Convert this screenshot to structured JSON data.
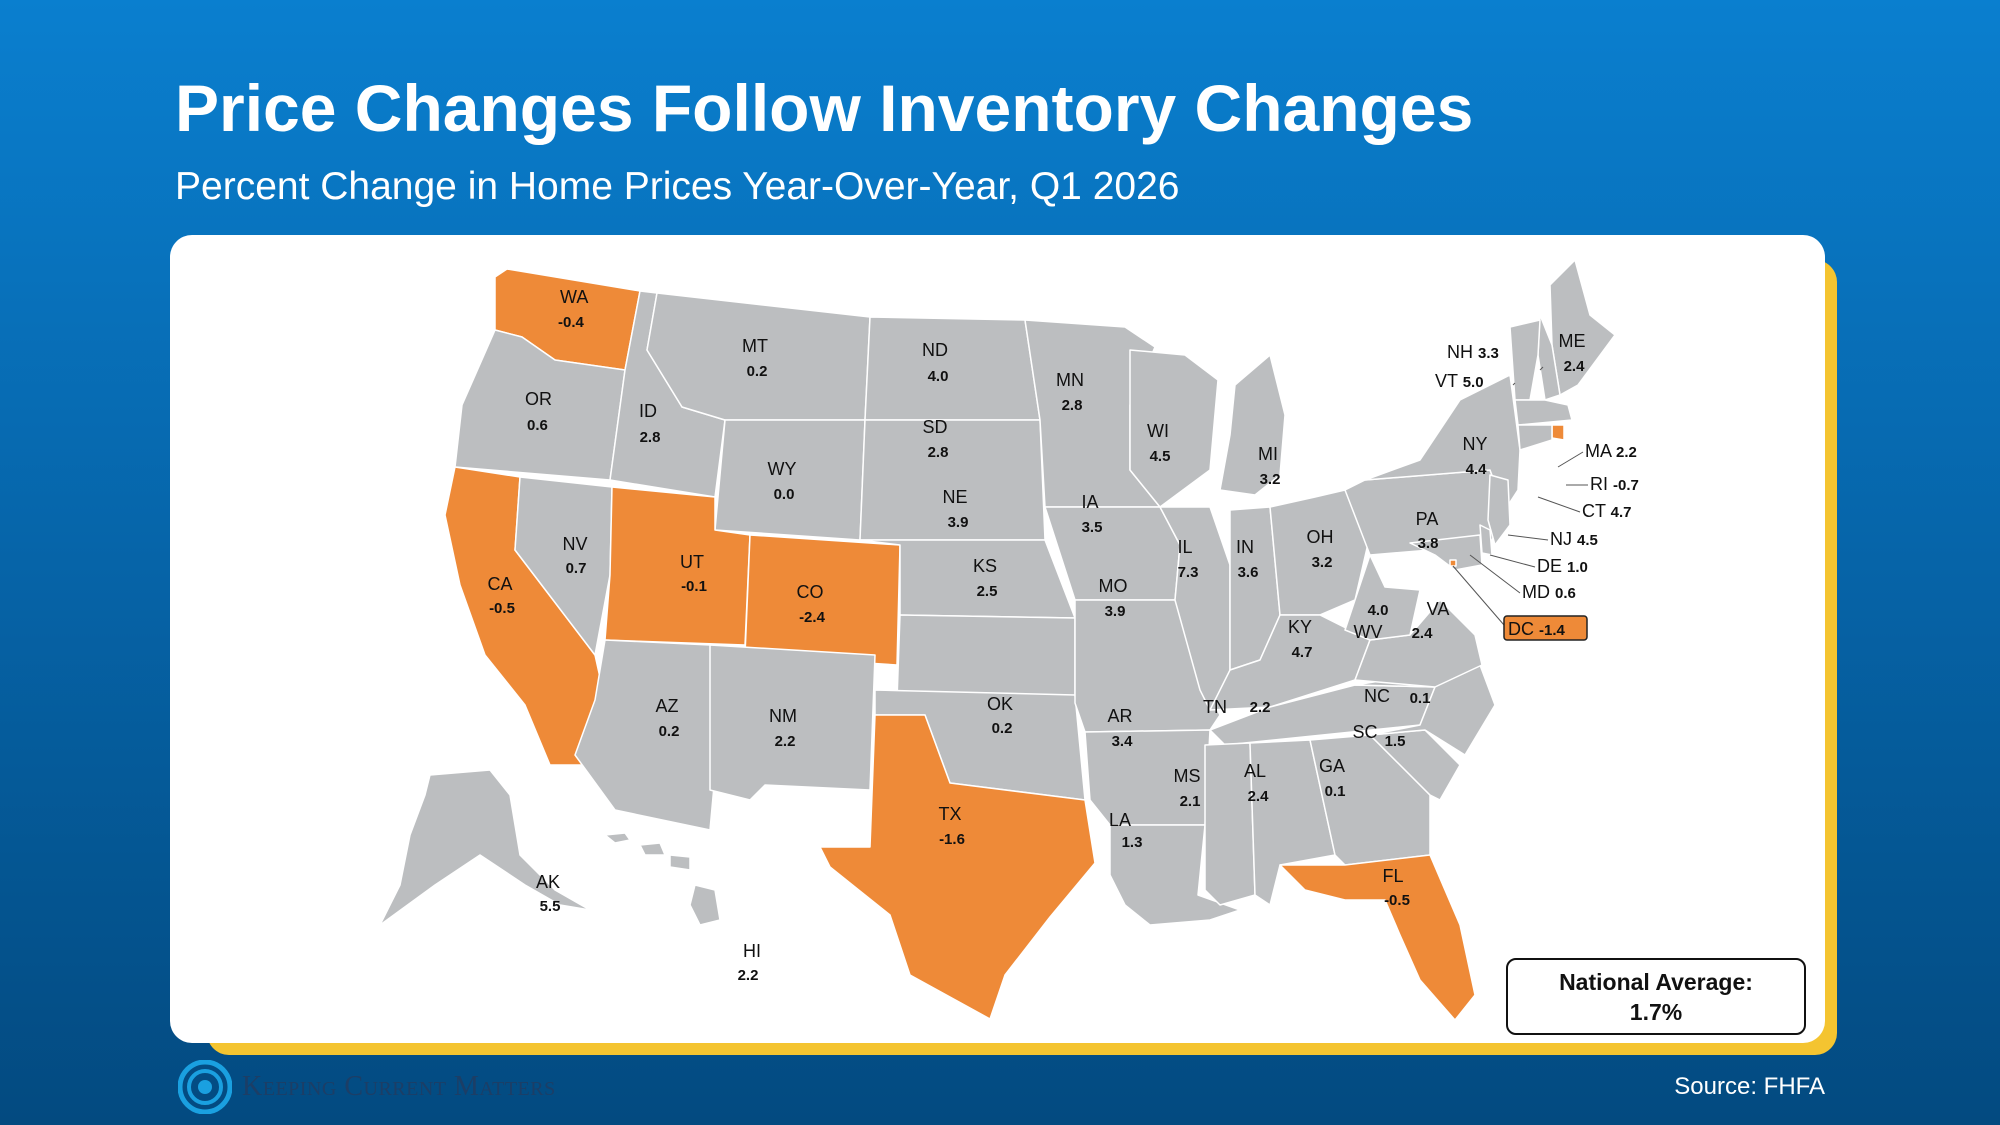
{
  "title": "Price Changes Follow Inventory Changes",
  "subtitle": "Percent Change in Home Prices Year-Over-Year, Q1 2026",
  "colors": {
    "decline": "#ee8a38",
    "gain": "#bcbec0",
    "accent_frame": "#f4c430",
    "background": "#0a6fbb"
  },
  "states": [
    {
      "abbr": "WA",
      "value": "-0.4"
    },
    {
      "abbr": "OR",
      "value": "0.6"
    },
    {
      "abbr": "CA",
      "value": "-0.5"
    },
    {
      "abbr": "NV",
      "value": "0.7"
    },
    {
      "abbr": "ID",
      "value": "2.8"
    },
    {
      "abbr": "MT",
      "value": "0.2"
    },
    {
      "abbr": "WY",
      "value": "0.0"
    },
    {
      "abbr": "UT",
      "value": "-0.1"
    },
    {
      "abbr": "CO",
      "value": "-2.4"
    },
    {
      "abbr": "AZ",
      "value": "0.2"
    },
    {
      "abbr": "NM",
      "value": "2.2"
    },
    {
      "abbr": "ND",
      "value": "4.0"
    },
    {
      "abbr": "SD",
      "value": "2.8"
    },
    {
      "abbr": "NE",
      "value": "3.9"
    },
    {
      "abbr": "KS",
      "value": "2.5"
    },
    {
      "abbr": "OK",
      "value": "0.2"
    },
    {
      "abbr": "TX",
      "value": "-1.6"
    },
    {
      "abbr": "MN",
      "value": "2.8"
    },
    {
      "abbr": "IA",
      "value": "3.5"
    },
    {
      "abbr": "MO",
      "value": "3.9"
    },
    {
      "abbr": "AR",
      "value": "3.4"
    },
    {
      "abbr": "LA",
      "value": "1.3"
    },
    {
      "abbr": "WI",
      "value": "4.5"
    },
    {
      "abbr": "IL",
      "value": "7.3"
    },
    {
      "abbr": "MI",
      "value": "3.2"
    },
    {
      "abbr": "IN",
      "value": "3.6"
    },
    {
      "abbr": "OH",
      "value": "3.2"
    },
    {
      "abbr": "KY",
      "value": "4.7"
    },
    {
      "abbr": "TN",
      "value": "2.2"
    },
    {
      "abbr": "MS",
      "value": "2.1"
    },
    {
      "abbr": "AL",
      "value": "2.4"
    },
    {
      "abbr": "GA",
      "value": "0.1"
    },
    {
      "abbr": "FL",
      "value": "-0.5"
    },
    {
      "abbr": "SC",
      "value": "1.5"
    },
    {
      "abbr": "NC",
      "value": "0.1"
    },
    {
      "abbr": "VA",
      "value": "2.4"
    },
    {
      "abbr": "WV",
      "value": "4.0"
    },
    {
      "abbr": "PA",
      "value": "3.8"
    },
    {
      "abbr": "NY",
      "value": "4.4"
    },
    {
      "abbr": "ME",
      "value": "2.4"
    },
    {
      "abbr": "AK",
      "value": "5.5"
    },
    {
      "abbr": "HI",
      "value": "2.2"
    },
    {
      "abbr": "NH",
      "value": "3.3"
    },
    {
      "abbr": "VT",
      "value": "5.0"
    },
    {
      "abbr": "MA",
      "value": "2.2"
    },
    {
      "abbr": "RI",
      "value": "-0.7"
    },
    {
      "abbr": "CT",
      "value": "4.7"
    },
    {
      "abbr": "NJ",
      "value": "4.5"
    },
    {
      "abbr": "DE",
      "value": "1.0"
    },
    {
      "abbr": "MD",
      "value": "0.6"
    },
    {
      "abbr": "DC",
      "value": "-1.4"
    }
  ],
  "national_average": {
    "label": "National Average:",
    "value": "1.7%"
  },
  "logo_text": "Keeping Current Matters",
  "source": "Source: FHFA"
}
